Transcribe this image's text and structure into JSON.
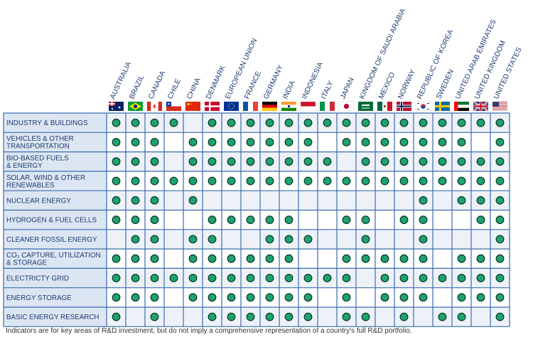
{
  "chart_data": {
    "type": "table",
    "countries": [
      "AUSTRALIA",
      "BRAZIL",
      "CANADA",
      "CHILE",
      "CHINA",
      "DENMARK",
      "EUROPEAN UNION",
      "FRANCE",
      "GERMANY",
      "INDIA",
      "INDONESIA",
      "ITALY",
      "JAPAN",
      "KINGDOM OF SAUDI ARABIA",
      "MEXICO",
      "NORWAY",
      "REPUBLIC OF KOREA",
      "SWEDEN",
      "UNITED ARAB EMIRATES",
      "UNITED KINGDOM",
      "UNITED STATES"
    ],
    "flag_icons": [
      "flag-australia-icon",
      "flag-brazil-icon",
      "flag-canada-icon",
      "flag-chile-icon",
      "flag-china-icon",
      "flag-denmark-icon",
      "flag-european-union-icon",
      "flag-france-icon",
      "flag-germany-icon",
      "flag-india-icon",
      "flag-indonesia-icon",
      "flag-italy-icon",
      "flag-japan-icon",
      "flag-saudi-arabia-icon",
      "flag-mexico-icon",
      "flag-norway-icon",
      "flag-republic-of-korea-icon",
      "flag-sweden-icon",
      "flag-united-arab-emirates-icon",
      "flag-united-kingdom-icon",
      "flag-united-states-icon"
    ],
    "rows": [
      {
        "label": [
          "INDUSTRY & BUILDINGS"
        ],
        "values": [
          1,
          1,
          1,
          1,
          0,
          1,
          1,
          1,
          1,
          1,
          1,
          1,
          1,
          1,
          1,
          1,
          1,
          1,
          1,
          1,
          1
        ]
      },
      {
        "label": [
          "VEHICLES & OTHER",
          "TRANSPORTATION"
        ],
        "values": [
          1,
          1,
          1,
          0,
          1,
          1,
          1,
          1,
          1,
          1,
          1,
          0,
          1,
          1,
          1,
          1,
          1,
          1,
          1,
          0,
          1
        ]
      },
      {
        "label": [
          "BIO-BASED FUELS",
          "& ENERGY"
        ],
        "values": [
          1,
          1,
          1,
          0,
          1,
          1,
          1,
          1,
          1,
          1,
          1,
          1,
          0,
          1,
          1,
          1,
          1,
          1,
          1,
          1,
          1
        ]
      },
      {
        "label": [
          "SOLAR, WIND & OTHER",
          "RENEWABLES"
        ],
        "values": [
          1,
          1,
          1,
          1,
          1,
          1,
          1,
          1,
          1,
          1,
          1,
          1,
          1,
          1,
          1,
          1,
          1,
          1,
          1,
          1,
          1
        ]
      },
      {
        "label": [
          "NUCLEAR ENERGY"
        ],
        "values": [
          1,
          1,
          1,
          0,
          1,
          0,
          0,
          0,
          0,
          0,
          0,
          0,
          0,
          0,
          0,
          0,
          1,
          0,
          1,
          1,
          1
        ]
      },
      {
        "label": [
          "HYDROGEN & FUEL CELLS"
        ],
        "values": [
          1,
          1,
          1,
          0,
          0,
          1,
          1,
          1,
          1,
          1,
          0,
          0,
          1,
          1,
          0,
          1,
          1,
          0,
          0,
          1,
          1
        ]
      },
      {
        "label": [
          "CLEANER FOSSIL ENERGY"
        ],
        "values": [
          0,
          1,
          1,
          0,
          1,
          1,
          0,
          0,
          1,
          1,
          1,
          0,
          0,
          1,
          0,
          0,
          1,
          0,
          0,
          0,
          1
        ]
      },
      {
        "label": [
          "CO₂ CAPTURE, UTILIZATION",
          "& STORAGE"
        ],
        "values": [
          1,
          1,
          1,
          0,
          1,
          1,
          1,
          1,
          1,
          1,
          0,
          0,
          1,
          1,
          1,
          1,
          1,
          0,
          1,
          1,
          1
        ]
      },
      {
        "label": [
          "ELECTRICTY GRID"
        ],
        "values": [
          1,
          1,
          1,
          1,
          1,
          1,
          1,
          1,
          1,
          1,
          1,
          1,
          1,
          0,
          1,
          1,
          1,
          1,
          1,
          1,
          1
        ]
      },
      {
        "label": [
          "ENERGY STORAGE"
        ],
        "values": [
          1,
          1,
          1,
          0,
          1,
          1,
          1,
          1,
          1,
          1,
          1,
          0,
          1,
          0,
          1,
          1,
          1,
          0,
          1,
          1,
          1
        ]
      },
      {
        "label": [
          "BASIC ENERGY RESEARCH"
        ],
        "values": [
          1,
          0,
          1,
          0,
          0,
          1,
          1,
          1,
          1,
          1,
          1,
          0,
          1,
          1,
          0,
          1,
          0,
          1,
          1,
          0,
          1
        ]
      }
    ],
    "footnote": "Indicators are for key areas of R&D investment, but do not imply a comprehensive representation of a country's full R&D portfolio.",
    "colors": {
      "grid": "#3a6cae",
      "label_bg": "#dce6f2",
      "alt_bg": "#eef2f8",
      "dot": "#1ea26e",
      "dot_ring": "#0d3f2c",
      "header_text": "#1f3b73",
      "label_text": "#1f3b73"
    }
  }
}
